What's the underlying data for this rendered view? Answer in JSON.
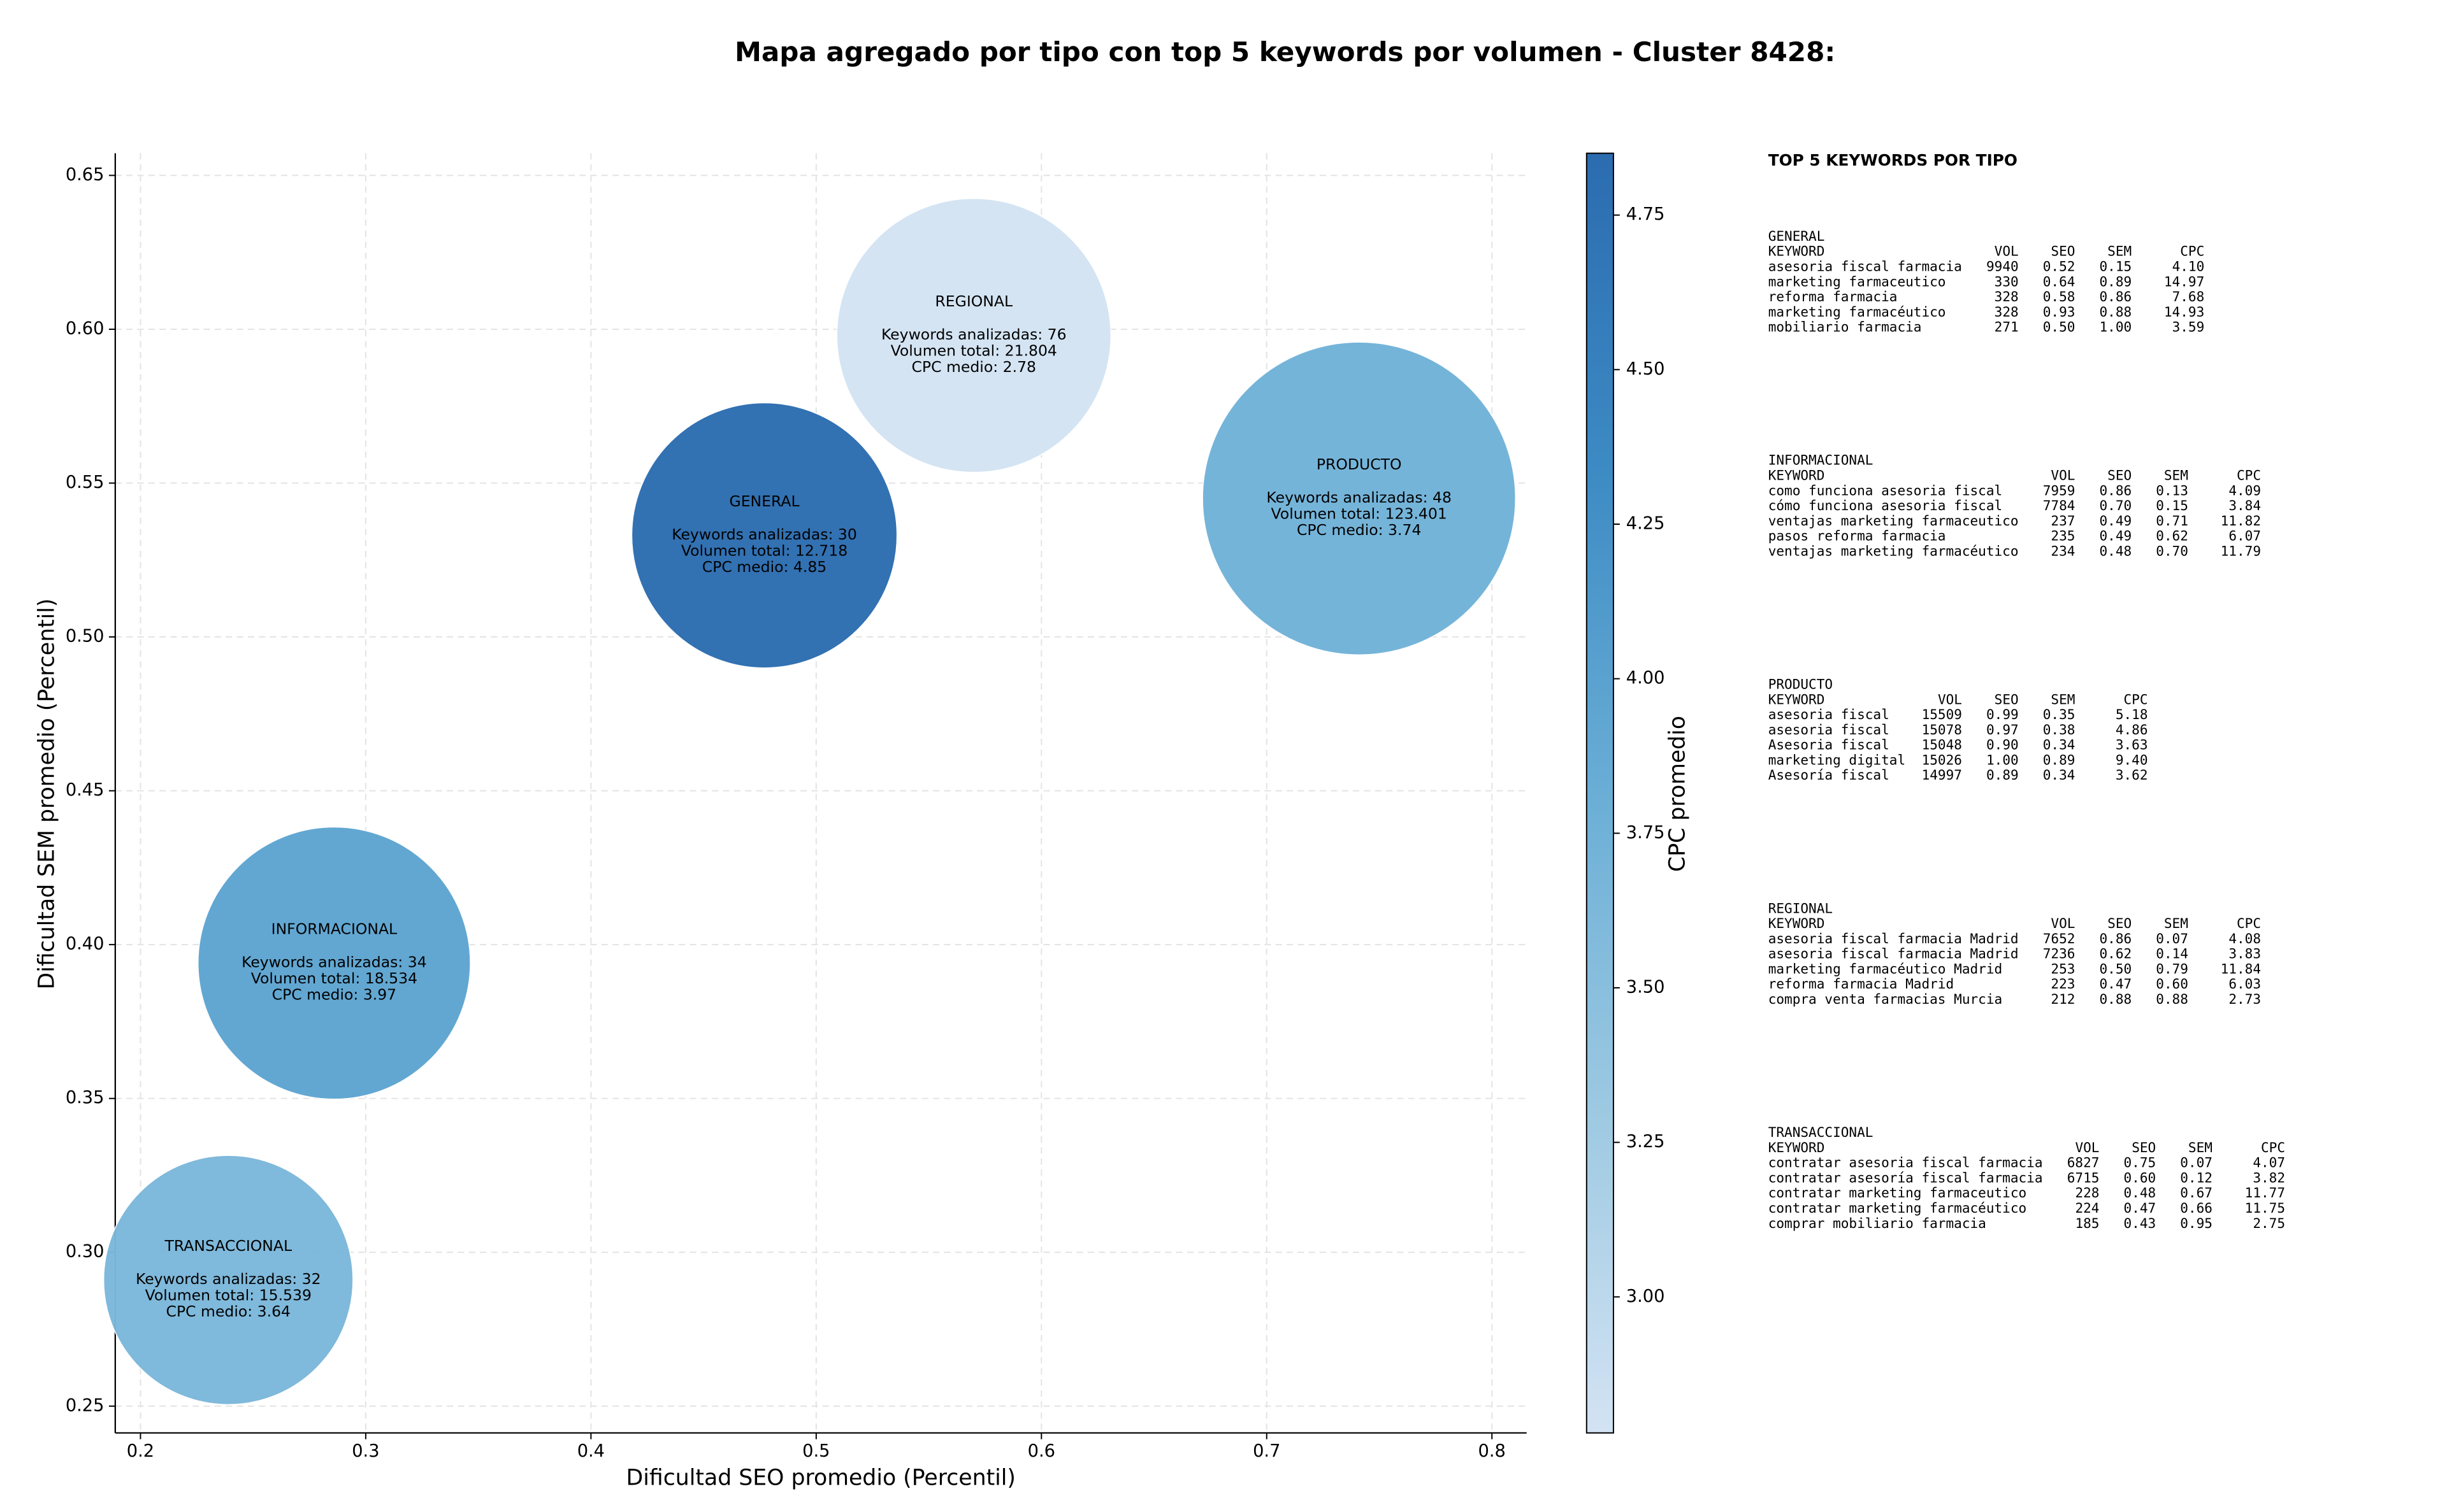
{
  "chart_data": {
    "type": "scatter",
    "title": "Mapa agregado por tipo con top 5 keywords por volumen - Cluster 8428:",
    "xlabel": "Dificultad SEO promedio (Percentil)",
    "ylabel": "Dificultad SEM promedio (Percentil)",
    "xlim": [
      0.1888,
      0.8154
    ],
    "ylim": [
      0.2413,
      0.6572
    ],
    "xticks": [
      0.2,
      0.3,
      0.4,
      0.5,
      0.6,
      0.7,
      0.8
    ],
    "yticks": [
      0.25,
      {
        "value": 0.3,
        "label": "0.30"
      },
      0.35,
      {
        "value": 0.4,
        "label": "0.40"
      },
      0.45,
      {
        "value": 0.5,
        "label": "0.50"
      },
      0.55,
      {
        "value": 0.6,
        "label": "0.60"
      },
      0.65
    ],
    "grid": true,
    "categories": [
      "GENERAL",
      "INFORMACIONAL",
      "PRODUCTO",
      "REGIONAL",
      "TRANSACCIONAL"
    ],
    "x": [
      0.477,
      0.286,
      0.741,
      0.57,
      0.239
    ],
    "y": [
      0.533,
      0.394,
      0.545,
      0.598,
      0.291
    ],
    "values": [
      4.85,
      3.97,
      3.74,
      2.78,
      3.64
    ],
    "sizes": [
      150,
      154,
      177,
      155,
      141
    ],
    "annotations": [
      [
        "Keywords analizadas: 30",
        "Volumen total: 12.718",
        "CPC medio: 4.85"
      ],
      [
        "Keywords analizadas: 34",
        "Volumen total: 18.534",
        "CPC medio: 3.97"
      ],
      [
        "Keywords analizadas: 48",
        "Volumen total: 123.401",
        "CPC medio: 3.74"
      ],
      [
        "Keywords analizadas: 76",
        "Volumen total: 21.804",
        "CPC medio: 2.78"
      ],
      [
        "Keywords analizadas: 32",
        "Volumen total: 15.539",
        "CPC medio: 3.64"
      ]
    ],
    "colorbar": {
      "label": "CPC promedio",
      "clim": [
        2.78,
        4.85
      ],
      "ticks": [
        {
          "value": 3,
          "label": "3.00"
        },
        3.25,
        {
          "value": 3.5,
          "label": "3.50"
        },
        3.75,
        {
          "value": 4,
          "label": "4.00"
        },
        4.25,
        {
          "value": 4.5,
          "label": "4.50"
        },
        4.75
      ],
      "colormap": [
        "#d3e3f3",
        "#9dc9e2",
        "#6aaed6",
        "#3d8bc4",
        "#2b6cb0"
      ]
    },
    "keyword_panel": {
      "title": "TOP 5 KEYWORDS POR TIPO",
      "groups": [
        {
          "name": "GENERAL",
          "header": [
            "KEYWORD",
            "VOL",
            "SEO",
            "SEM",
            "CPC"
          ],
          "rows": [
            [
              "asesoria fiscal farmacia",
              "9940",
              "0.52",
              "0.15",
              "4.10"
            ],
            [
              "marketing farmaceutico",
              "330",
              "0.64",
              "0.89",
              "14.97"
            ],
            [
              "reforma farmacia",
              "328",
              "0.58",
              "0.86",
              "7.68"
            ],
            [
              "marketing farmacéutico",
              "328",
              "0.93",
              "0.88",
              "14.93"
            ],
            [
              "mobiliario farmacia",
              "271",
              "0.50",
              "1.00",
              "3.59"
            ]
          ]
        },
        {
          "name": "INFORMACIONAL",
          "header": [
            "KEYWORD",
            "VOL",
            "SEO",
            "SEM",
            "CPC"
          ],
          "rows": [
            [
              "como funciona asesoria fiscal",
              "7959",
              "0.86",
              "0.13",
              "4.09"
            ],
            [
              "cómo funciona asesoria fiscal",
              "7784",
              "0.70",
              "0.15",
              "3.84"
            ],
            [
              "ventajas marketing farmaceutico",
              "237",
              "0.49",
              "0.71",
              "11.82"
            ],
            [
              "pasos reforma farmacia",
              "235",
              "0.49",
              "0.62",
              "6.07"
            ],
            [
              "ventajas marketing farmacéutico",
              "234",
              "0.48",
              "0.70",
              "11.79"
            ]
          ]
        },
        {
          "name": "PRODUCTO",
          "header": [
            "KEYWORD",
            "VOL",
            "SEO",
            "SEM",
            "CPC"
          ],
          "rows": [
            [
              "asesoria fiscal",
              "15509",
              "0.99",
              "0.35",
              "5.18"
            ],
            [
              "asesoria fiscal",
              "15078",
              "0.97",
              "0.38",
              "4.86"
            ],
            [
              "Asesoria fiscal",
              "15048",
              "0.90",
              "0.34",
              "3.63"
            ],
            [
              "marketing digital",
              "15026",
              "1.00",
              "0.89",
              "9.40"
            ],
            [
              "Asesoría fiscal",
              "14997",
              "0.89",
              "0.34",
              "3.62"
            ]
          ]
        },
        {
          "name": "REGIONAL",
          "header": [
            "KEYWORD",
            "VOL",
            "SEO",
            "SEM",
            "CPC"
          ],
          "rows": [
            [
              "asesoria fiscal farmacia Madrid",
              "7652",
              "0.86",
              "0.07",
              "4.08"
            ],
            [
              "asesoria fiscal farmacia Madrid",
              "7236",
              "0.62",
              "0.14",
              "3.83"
            ],
            [
              "marketing farmacéutico Madrid",
              "253",
              "0.50",
              "0.79",
              "11.84"
            ],
            [
              "reforma farmacia Madrid",
              "223",
              "0.47",
              "0.60",
              "6.03"
            ],
            [
              "compra venta farmacias Murcia",
              "212",
              "0.88",
              "0.88",
              "2.73"
            ]
          ]
        },
        {
          "name": "TRANSACCIONAL",
          "header": [
            "KEYWORD",
            "VOL",
            "SEO",
            "SEM",
            "CPC"
          ],
          "rows": [
            [
              "contratar asesoria fiscal farmacia",
              "6827",
              "0.75",
              "0.07",
              "4.07"
            ],
            [
              "contratar asesoría fiscal farmacia",
              "6715",
              "0.60",
              "0.12",
              "3.82"
            ],
            [
              "contratar marketing farmaceutico",
              "228",
              "0.48",
              "0.67",
              "11.77"
            ],
            [
              "contratar marketing farmacéutico",
              "224",
              "0.47",
              "0.66",
              "11.75"
            ],
            [
              "comprar mobiliario farmacia",
              "185",
              "0.43",
              "0.95",
              "2.75"
            ]
          ]
        }
      ]
    }
  }
}
